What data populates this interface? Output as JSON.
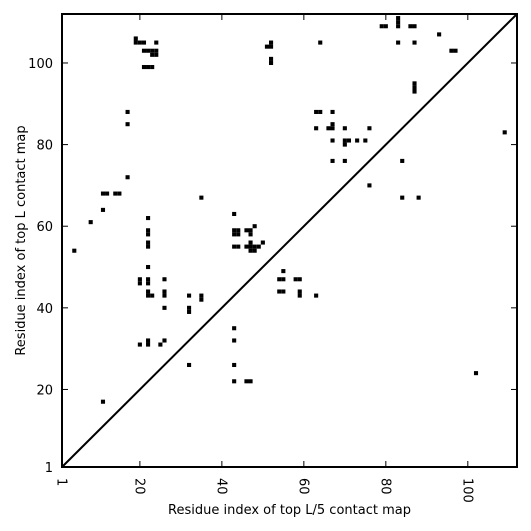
{
  "chart_data": {
    "type": "scatter",
    "xlabel": "Residue index of top L/5 contact map",
    "ylabel": "Residue index of top L contact map",
    "xlim": [
      1,
      112
    ],
    "ylim": [
      1,
      112
    ],
    "xticks": [
      1,
      20,
      40,
      60,
      80,
      100
    ],
    "yticks": [
      1,
      20,
      40,
      60,
      80,
      100
    ],
    "diagonal": true,
    "marker_color": "#000000",
    "points": [
      [
        4,
        54
      ],
      [
        8,
        61
      ],
      [
        11,
        64
      ],
      [
        11,
        68
      ],
      [
        12,
        68
      ],
      [
        14,
        68
      ],
      [
        15,
        68
      ],
      [
        11,
        17
      ],
      [
        17,
        72
      ],
      [
        17,
        85
      ],
      [
        17,
        88
      ],
      [
        20,
        46
      ],
      [
        20,
        47
      ],
      [
        20,
        31
      ],
      [
        22,
        31
      ],
      [
        22,
        32
      ],
      [
        22,
        43
      ],
      [
        22,
        44
      ],
      [
        22,
        46
      ],
      [
        22,
        47
      ],
      [
        22,
        50
      ],
      [
        22,
        55
      ],
      [
        22,
        56
      ],
      [
        22,
        58
      ],
      [
        22,
        59
      ],
      [
        22,
        62
      ],
      [
        23,
        43
      ],
      [
        25,
        31
      ],
      [
        26,
        32
      ],
      [
        26,
        40
      ],
      [
        26,
        43
      ],
      [
        26,
        44
      ],
      [
        26,
        47
      ],
      [
        32,
        26
      ],
      [
        32,
        39
      ],
      [
        32,
        40
      ],
      [
        32,
        43
      ],
      [
        35,
        42
      ],
      [
        35,
        43
      ],
      [
        35,
        67
      ],
      [
        19,
        105
      ],
      [
        19,
        106
      ],
      [
        20,
        105
      ],
      [
        21,
        105
      ],
      [
        21,
        103
      ],
      [
        22,
        103
      ],
      [
        23,
        103
      ],
      [
        23,
        102
      ],
      [
        24,
        103
      ],
      [
        24,
        102
      ],
      [
        24,
        105
      ],
      [
        21,
        99
      ],
      [
        22,
        99
      ],
      [
        23,
        99
      ],
      [
        43,
        22
      ],
      [
        43,
        26
      ],
      [
        43,
        32
      ],
      [
        43,
        35
      ],
      [
        43,
        55
      ],
      [
        44,
        55
      ],
      [
        43,
        58
      ],
      [
        44,
        58
      ],
      [
        43,
        59
      ],
      [
        44,
        59
      ],
      [
        43,
        63
      ],
      [
        46,
        22
      ],
      [
        47,
        22
      ],
      [
        46,
        55
      ],
      [
        47,
        55
      ],
      [
        46,
        59
      ],
      [
        47,
        58
      ],
      [
        47,
        59
      ],
      [
        47,
        56
      ],
      [
        47,
        54
      ],
      [
        48,
        54
      ],
      [
        48,
        55
      ],
      [
        49,
        55
      ],
      [
        48,
        60
      ],
      [
        50,
        56
      ],
      [
        51,
        104
      ],
      [
        52,
        104
      ],
      [
        52,
        105
      ],
      [
        52,
        100
      ],
      [
        52,
        101
      ],
      [
        54,
        44
      ],
      [
        55,
        44
      ],
      [
        54,
        47
      ],
      [
        55,
        47
      ],
      [
        55,
        49
      ],
      [
        58,
        47
      ],
      [
        59,
        47
      ],
      [
        59,
        43
      ],
      [
        59,
        44
      ],
      [
        63,
        43
      ],
      [
        63,
        84
      ],
      [
        63,
        88
      ],
      [
        64,
        88
      ],
      [
        64,
        105
      ],
      [
        66,
        84
      ],
      [
        67,
        84
      ],
      [
        67,
        85
      ],
      [
        67,
        88
      ],
      [
        67,
        81
      ],
      [
        67,
        76
      ],
      [
        70,
        76
      ],
      [
        70,
        80
      ],
      [
        70,
        81
      ],
      [
        70,
        84
      ],
      [
        71,
        81
      ],
      [
        73,
        81
      ],
      [
        75,
        81
      ],
      [
        76,
        84
      ],
      [
        76,
        70
      ],
      [
        79,
        109
      ],
      [
        80,
        109
      ],
      [
        83,
        109
      ],
      [
        83,
        110
      ],
      [
        83,
        111
      ],
      [
        83,
        105
      ],
      [
        84,
        76
      ],
      [
        84,
        67
      ],
      [
        86,
        109
      ],
      [
        87,
        109
      ],
      [
        87,
        105
      ],
      [
        87,
        93
      ],
      [
        87,
        94
      ],
      [
        87,
        95
      ],
      [
        88,
        67
      ],
      [
        93,
        107
      ],
      [
        96,
        103
      ],
      [
        97,
        103
      ],
      [
        102,
        24
      ],
      [
        109,
        83
      ]
    ]
  }
}
